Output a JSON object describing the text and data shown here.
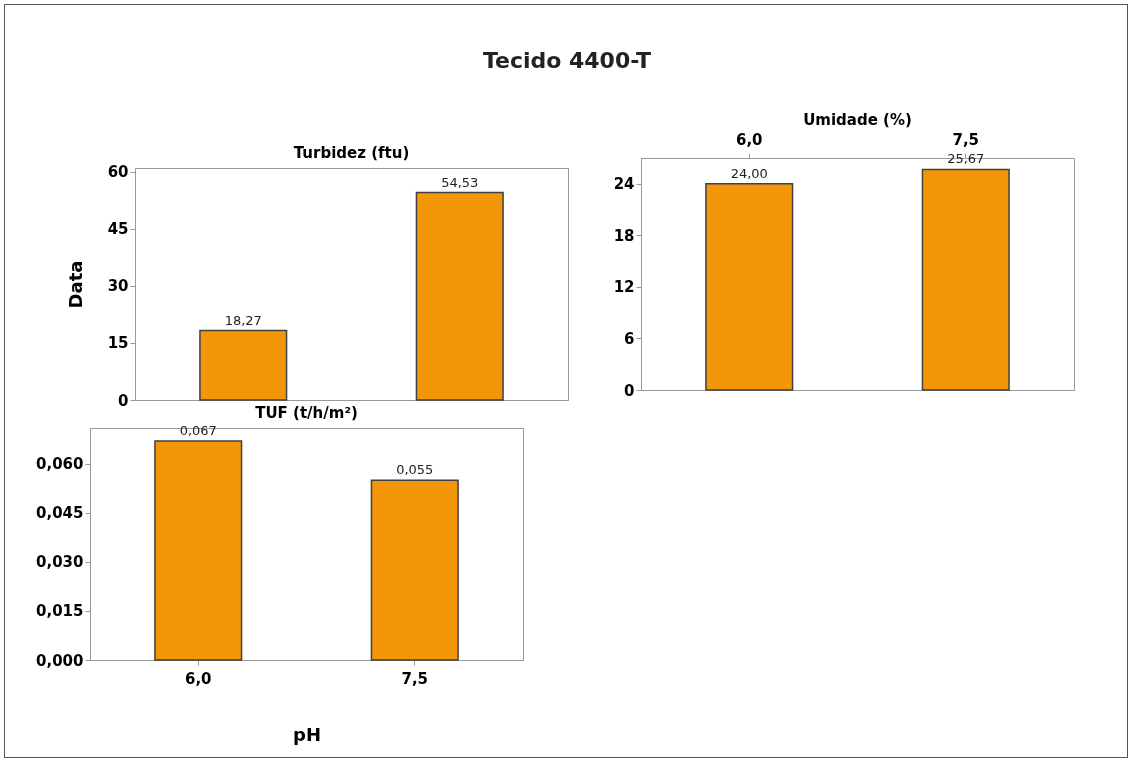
{
  "chart_data": [
    {
      "type": "bar",
      "title": "Turbidez (ftu)",
      "annotations": [
        "Tecido 4400-T"
      ],
      "ylabel": "Data",
      "categories": [
        "6,0",
        "7,5"
      ],
      "values": [
        18.27,
        54.53
      ],
      "value_labels": [
        "18,27",
        "54,53"
      ],
      "color": "#f39708",
      "ylim": [
        0,
        61
      ],
      "yticks": [
        0,
        15,
        30,
        45,
        60
      ],
      "tick_labels": "y"
    },
    {
      "type": "bar",
      "title": "Umidade (%)",
      "categories": [
        "6,0",
        "7,5"
      ],
      "values": [
        24.0,
        25.67
      ],
      "value_labels": [
        "24,00",
        "25,67"
      ],
      "color": "#f39708",
      "ylim": [
        0,
        27
      ],
      "yticks": [
        0,
        6,
        12,
        18,
        24
      ]
    },
    {
      "type": "bar",
      "title": "TUF (t/h/m²)",
      "xlabel": "pH",
      "categories": [
        "6,0",
        "7,5"
      ],
      "values": [
        0.067,
        0.055
      ],
      "value_labels": [
        "0,067",
        "0,055"
      ],
      "color": "#f39708",
      "ylim": [
        0,
        0.071
      ],
      "yticks": [
        {
          "value": 0,
          "label": "0,000"
        },
        {
          "value": 0.015,
          "label": "0,015"
        },
        {
          "value": 0.03,
          "label": "0,030"
        },
        {
          "value": 0.045,
          "label": "0,045"
        },
        {
          "value": 0.06,
          "label": "0,060"
        }
      ]
    }
  ]
}
